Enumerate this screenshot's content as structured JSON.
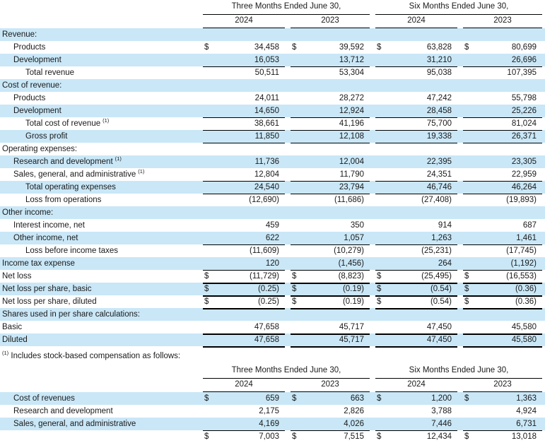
{
  "colors": {
    "highlight": "#c9e7f7",
    "rule": "#000000",
    "text": "#1a1a1a"
  },
  "footnote": {
    "marker": "(1)",
    "text": "Includes stock-based compensation as follows:"
  },
  "tables": [
    {
      "name": "income-statement",
      "column_groups": [
        "Three Months Ended June 30,",
        "Six Months Ended June 30,"
      ],
      "column_years": [
        "2024",
        "2023",
        "2024",
        "2023"
      ],
      "rows": [
        {
          "label": "Revenue:",
          "indent": 0,
          "dollar": false,
          "border": "none",
          "values": [
            "",
            "",
            "",
            ""
          ]
        },
        {
          "label": "Products",
          "indent": 1,
          "dollar": true,
          "border": "none",
          "values": [
            "34,458",
            "39,592",
            "63,828",
            "80,699"
          ]
        },
        {
          "label": "Development",
          "indent": 1,
          "dollar": false,
          "border": "thin",
          "values": [
            "16,053",
            "13,712",
            "31,210",
            "26,696"
          ]
        },
        {
          "label": "Total revenue",
          "indent": 2,
          "dollar": false,
          "border": "none",
          "values": [
            "50,511",
            "53,304",
            "95,038",
            "107,395"
          ]
        },
        {
          "label": "Cost of revenue:",
          "indent": 0,
          "dollar": false,
          "border": "none",
          "values": [
            "",
            "",
            "",
            ""
          ]
        },
        {
          "label": "Products",
          "indent": 1,
          "dollar": false,
          "border": "none",
          "values": [
            "24,011",
            "28,272",
            "47,242",
            "55,798"
          ]
        },
        {
          "label": "Development",
          "indent": 1,
          "dollar": false,
          "border": "thin",
          "values": [
            "14,650",
            "12,924",
            "28,458",
            "25,226"
          ]
        },
        {
          "label": "Total cost of revenue",
          "sup": "(1)",
          "indent": 2,
          "dollar": false,
          "border": "thin",
          "values": [
            "38,661",
            "41,196",
            "75,700",
            "81,024"
          ]
        },
        {
          "label": "Gross profit",
          "indent": 2,
          "dollar": false,
          "border": "thin",
          "values": [
            "11,850",
            "12,108",
            "19,338",
            "26,371"
          ]
        },
        {
          "label": "Operating expenses:",
          "indent": 0,
          "dollar": false,
          "border": "none",
          "values": [
            "",
            "",
            "",
            ""
          ]
        },
        {
          "label": "Research and development",
          "sup": "(1)",
          "indent": 1,
          "dollar": false,
          "border": "none",
          "values": [
            "11,736",
            "12,004",
            "22,395",
            "23,305"
          ]
        },
        {
          "label": "Sales, general, and administrative",
          "sup": "(1)",
          "indent": 1,
          "dollar": false,
          "border": "thin",
          "values": [
            "12,804",
            "11,790",
            "24,351",
            "22,959"
          ]
        },
        {
          "label": "Total operating expenses",
          "indent": 2,
          "dollar": false,
          "border": "thin",
          "values": [
            "24,540",
            "23,794",
            "46,746",
            "46,264"
          ]
        },
        {
          "label": "Loss from operations",
          "indent": 2,
          "dollar": false,
          "border": "none",
          "values": [
            "(12,690)",
            "(11,686)",
            "(27,408)",
            "(19,893)"
          ]
        },
        {
          "label": "Other income:",
          "indent": 0,
          "dollar": false,
          "border": "none",
          "values": [
            "",
            "",
            "",
            ""
          ]
        },
        {
          "label": "Interest income, net",
          "indent": 1,
          "dollar": false,
          "border": "none",
          "values": [
            "459",
            "350",
            "914",
            "687"
          ]
        },
        {
          "label": "Other income, net",
          "indent": 1,
          "dollar": false,
          "border": "thin",
          "values": [
            "622",
            "1,057",
            "1,263",
            "1,461"
          ]
        },
        {
          "label": "Loss before income taxes",
          "indent": 2,
          "dollar": false,
          "border": "none",
          "values": [
            "(11,609)",
            "(10,279)",
            "(25,231)",
            "(17,745)"
          ]
        },
        {
          "label": "Income tax expense",
          "indent": 0,
          "dollar": false,
          "border": "thin",
          "values": [
            "120",
            "(1,456)",
            "264",
            "(1,192)"
          ]
        },
        {
          "label": "Net loss",
          "indent": 0,
          "dollar": true,
          "border": "thick",
          "values": [
            "(11,729)",
            "(8,823)",
            "(25,495)",
            "(16,553)"
          ]
        },
        {
          "label": "Net loss per share, basic",
          "indent": 0,
          "dollar": true,
          "border": "thick",
          "values": [
            "(0.25)",
            "(0.19)",
            "(0.54)",
            "(0.36)"
          ]
        },
        {
          "label": "Net loss per share, diluted",
          "indent": 0,
          "dollar": true,
          "border": "thick",
          "values": [
            "(0.25)",
            "(0.19)",
            "(0.54)",
            "(0.36)"
          ]
        },
        {
          "label": "Shares used in per share calculations:",
          "indent": 0,
          "dollar": false,
          "border": "none",
          "values": [
            "",
            "",
            "",
            ""
          ]
        },
        {
          "label": "Basic",
          "indent": 0,
          "dollar": false,
          "border": "thick",
          "values": [
            "47,658",
            "45,717",
            "47,450",
            "45,580"
          ]
        },
        {
          "label": "Diluted",
          "indent": 0,
          "dollar": false,
          "border": "thick",
          "values": [
            "47,658",
            "45,717",
            "47,450",
            "45,580"
          ]
        }
      ]
    },
    {
      "name": "stock-based-compensation",
      "column_groups": [
        "Three Months Ended June 30,",
        "Six Months Ended June 30,"
      ],
      "column_years": [
        "2024",
        "2023",
        "2024",
        "2023"
      ],
      "rows": [
        {
          "label": "Cost of revenues",
          "indent": 1,
          "dollar": true,
          "border": "none",
          "values": [
            "659",
            "663",
            "1,200",
            "1,363"
          ]
        },
        {
          "label": "Research and development",
          "indent": 1,
          "dollar": false,
          "border": "none",
          "values": [
            "2,175",
            "2,826",
            "3,788",
            "4,924"
          ]
        },
        {
          "label": "Sales, general, and administrative",
          "indent": 1,
          "dollar": false,
          "border": "thin",
          "values": [
            "4,169",
            "4,026",
            "7,446",
            "6,731"
          ]
        },
        {
          "label": "",
          "indent": 0,
          "dollar": true,
          "border": "thick",
          "values": [
            "7,003",
            "7,515",
            "12,434",
            "13,018"
          ]
        }
      ]
    }
  ]
}
